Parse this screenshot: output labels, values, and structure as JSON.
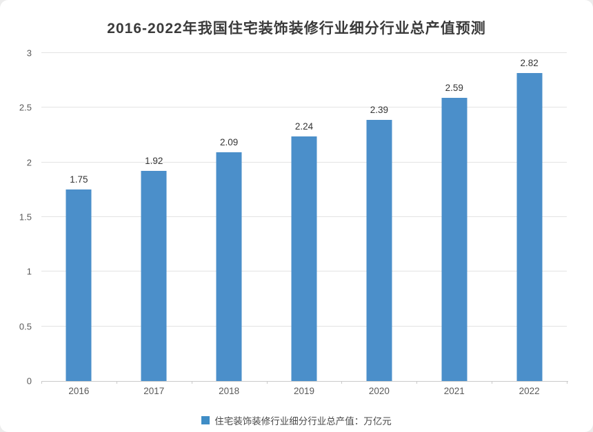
{
  "page": {
    "background_color": "#ececec",
    "card_color": "#ffffff"
  },
  "chart_data": {
    "type": "bar",
    "title": "2016-2022年我国住宅装饰装修行业细分行业总产值预测",
    "categories": [
      "2016",
      "2017",
      "2018",
      "2019",
      "2020",
      "2021",
      "2022"
    ],
    "series": [
      {
        "name": "住宅装饰装修行业细分行业总产值：万亿元",
        "values": [
          1.75,
          1.92,
          2.09,
          2.24,
          2.39,
          2.59,
          2.82
        ]
      }
    ],
    "data_labels": [
      "1.75",
      "1.92",
      "2.09",
      "2.24",
      "2.39",
      "2.59",
      "2.82"
    ],
    "xlabel": "",
    "ylabel": "",
    "ylim": [
      0,
      3
    ],
    "ytick_values": [
      0,
      0.5,
      1,
      1.5,
      2,
      2.5,
      3
    ],
    "ytick_labels": [
      "0",
      "0.5",
      "1",
      "1.5",
      "2",
      "2.5",
      "3"
    ],
    "grid": "horizontal",
    "legend_position": "bottom",
    "colors": {
      "bar": "#4b8fca",
      "legend_marker": "#3f8dc6",
      "gridline": "#e3e3e3",
      "axis_line": "#c9c9c9",
      "title_text": "#3a3a3a",
      "data_label_text": "#333333",
      "tick_label_text": "#595959",
      "legend_text": "#4a4a4a"
    }
  },
  "legend": {
    "label": "住宅装饰装修行业细分行业总产值：万亿元"
  }
}
